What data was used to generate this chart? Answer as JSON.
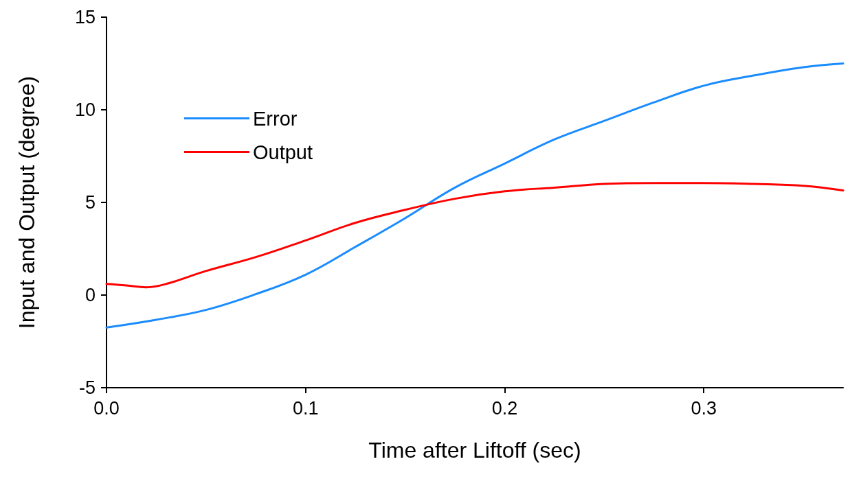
{
  "chart_data": {
    "type": "line",
    "xlabel": "Time after Liftoff (sec)",
    "ylabel": "Input and Output (degree)",
    "xlim": [
      0,
      0.37
    ],
    "xticks": [
      {
        "value": 0,
        "label": "0.0"
      },
      0.1,
      0.2,
      0.3
    ],
    "ylim": [
      -5,
      15
    ],
    "yticks": [
      -5,
      0,
      5,
      10,
      15
    ],
    "grid": false,
    "legend": "top left",
    "marker": "none",
    "line_style": "solid",
    "series": [
      {
        "name": "Error",
        "color": "#1a8cff",
        "x": [
          0,
          0.025,
          0.05,
          0.075,
          0.1,
          0.125,
          0.15,
          0.175,
          0.2,
          0.225,
          0.25,
          0.275,
          0.3,
          0.325,
          0.35,
          0.37
        ],
        "values": [
          -1.75,
          -1.33,
          -0.8,
          0.05,
          1.1,
          2.6,
          4.15,
          5.8,
          7.1,
          8.4,
          9.4,
          10.4,
          11.3,
          11.85,
          12.3,
          12.5
        ]
      },
      {
        "name": "Output",
        "color": "#ff0000",
        "x": [
          0,
          0.01,
          0.02,
          0.03,
          0.05,
          0.075,
          0.1,
          0.125,
          0.15,
          0.175,
          0.2,
          0.225,
          0.25,
          0.275,
          0.3,
          0.325,
          0.35,
          0.37
        ],
        "values": [
          0.6,
          0.52,
          0.42,
          0.6,
          1.3,
          2.05,
          2.95,
          3.9,
          4.6,
          5.2,
          5.6,
          5.8,
          6.0,
          6.05,
          6.05,
          6.0,
          5.9,
          5.65
        ]
      }
    ]
  }
}
